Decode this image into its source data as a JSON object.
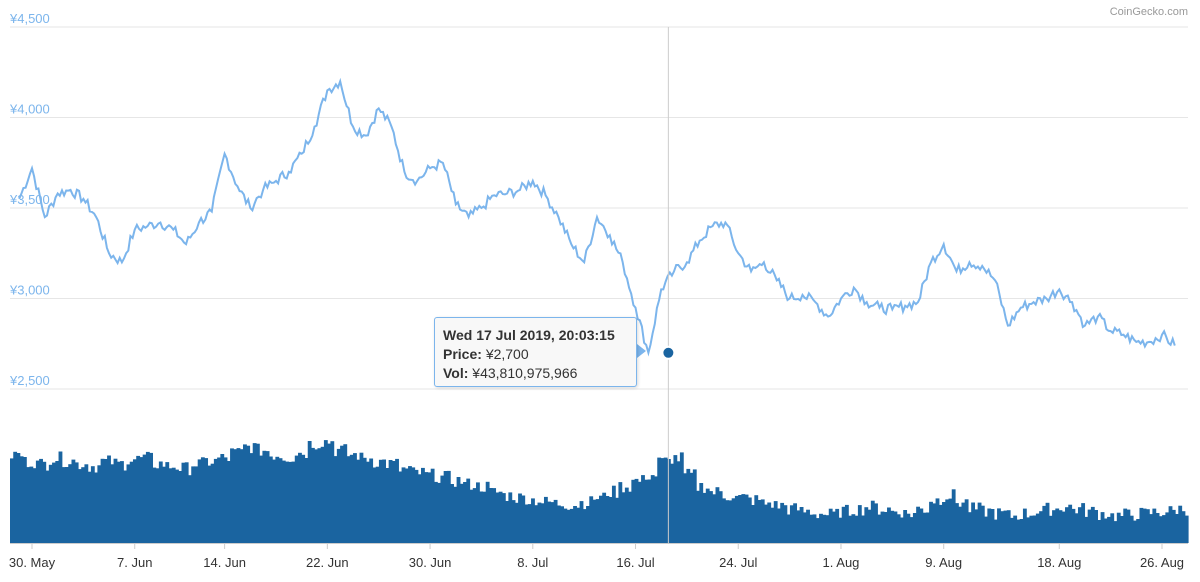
{
  "credit": "CoinGecko.com",
  "colors": {
    "price_line": "#7cb5ec",
    "volume_fill": "#1a64a0",
    "y_label": "#7cb5ec",
    "grid": "#e6e6e6",
    "x_label": "#333333"
  },
  "tooltip": {
    "title": "Wed 17 Jul 2019, 20:03:15",
    "price_label": "Price:",
    "price_value": "¥2,700",
    "vol_label": "Vol:",
    "vol_value": "¥43,810,975,966"
  },
  "chart_data": [
    {
      "type": "line",
      "name": "price",
      "x_unit": "date",
      "x": [
        "2019-05-29",
        "2019-05-30",
        "2019-05-31",
        "2019-06-01",
        "2019-06-02",
        "2019-06-03",
        "2019-06-04",
        "2019-06-05",
        "2019-06-06",
        "2019-06-07",
        "2019-06-08",
        "2019-06-09",
        "2019-06-10",
        "2019-06-11",
        "2019-06-12",
        "2019-06-13",
        "2019-06-14",
        "2019-06-15",
        "2019-06-16",
        "2019-06-17",
        "2019-06-18",
        "2019-06-19",
        "2019-06-20",
        "2019-06-21",
        "2019-06-22",
        "2019-06-23",
        "2019-06-24",
        "2019-06-25",
        "2019-06-26",
        "2019-06-27",
        "2019-06-28",
        "2019-06-29",
        "2019-06-30",
        "2019-07-01",
        "2019-07-02",
        "2019-07-03",
        "2019-07-04",
        "2019-07-05",
        "2019-07-06",
        "2019-07-07",
        "2019-07-08",
        "2019-07-09",
        "2019-07-10",
        "2019-07-11",
        "2019-07-12",
        "2019-07-13",
        "2019-07-14",
        "2019-07-15",
        "2019-07-16",
        "2019-07-17",
        "2019-07-18",
        "2019-07-19",
        "2019-07-20",
        "2019-07-21",
        "2019-07-22",
        "2019-07-23",
        "2019-07-24",
        "2019-07-25",
        "2019-07-26",
        "2019-07-27",
        "2019-07-28",
        "2019-07-29",
        "2019-07-30",
        "2019-07-31",
        "2019-08-01",
        "2019-08-02",
        "2019-08-03",
        "2019-08-04",
        "2019-08-05",
        "2019-08-06",
        "2019-08-07",
        "2019-08-08",
        "2019-08-09",
        "2019-08-10",
        "2019-08-11",
        "2019-08-12",
        "2019-08-13",
        "2019-08-14",
        "2019-08-15",
        "2019-08-16",
        "2019-08-17",
        "2019-08-18",
        "2019-08-19",
        "2019-08-20",
        "2019-08-21",
        "2019-08-22",
        "2019-08-23",
        "2019-08-24",
        "2019-08-25",
        "2019-08-26",
        "2019-08-27"
      ],
      "y": [
        3550,
        3720,
        3450,
        3580,
        3600,
        3550,
        3450,
        3250,
        3200,
        3380,
        3400,
        3420,
        3380,
        3300,
        3420,
        3480,
        3800,
        3620,
        3500,
        3600,
        3650,
        3700,
        3800,
        3950,
        4150,
        4200,
        3950,
        3900,
        4050,
        3950,
        3700,
        3650,
        3720,
        3750,
        3520,
        3450,
        3500,
        3570,
        3580,
        3600,
        3650,
        3570,
        3450,
        3300,
        3200,
        3450,
        3350,
        3200,
        2950,
        2700,
        3050,
        3150,
        3200,
        3320,
        3400,
        3420,
        3250,
        3150,
        3200,
        3100,
        3000,
        3020,
        2980,
        2900,
        3000,
        3060,
        2980,
        2950,
        2940,
        2960,
        2980,
        3200,
        3300,
        3150,
        3200,
        3180,
        3100,
        2850,
        2950,
        2980,
        3000,
        3050,
        2980,
        2850,
        2900,
        2820,
        2800,
        2760,
        2760,
        2800,
        2740
      ],
      "ylim": [
        2500,
        4500
      ],
      "y_ticks": [
        "¥2,500",
        "¥3,000",
        "¥3,500",
        "¥4,000",
        "¥4,500"
      ],
      "y_tick_values": [
        2500,
        3000,
        3500,
        4000,
        4500
      ],
      "x_tick_labels": [
        "30. May",
        "7. Jun",
        "14. Jun",
        "22. Jun",
        "30. Jun",
        "8. Jul",
        "16. Jul",
        "24. Jul",
        "1. Aug",
        "9. Aug",
        "18. Aug",
        "26. Aug"
      ],
      "x_tick_dates": [
        "2019-05-30",
        "2019-06-07",
        "2019-06-14",
        "2019-06-22",
        "2019-06-30",
        "2019-07-08",
        "2019-07-16",
        "2019-07-24",
        "2019-08-01",
        "2019-08-09",
        "2019-08-18",
        "2019-08-26"
      ],
      "highlight": {
        "x": "2019-07-17",
        "y": 2700
      },
      "grid": true
    },
    {
      "type": "bar",
      "name": "volume",
      "x_unit": "date",
      "relative_values": [
        0.78,
        0.72,
        0.7,
        0.75,
        0.73,
        0.7,
        0.68,
        0.72,
        0.7,
        0.74,
        0.75,
        0.7,
        0.68,
        0.66,
        0.7,
        0.72,
        0.75,
        0.8,
        0.85,
        0.82,
        0.78,
        0.76,
        0.8,
        0.88,
        0.9,
        0.82,
        0.78,
        0.75,
        0.72,
        0.7,
        0.65,
        0.62,
        0.6,
        0.58,
        0.55,
        0.52,
        0.5,
        0.45,
        0.42,
        0.4,
        0.38,
        0.36,
        0.35,
        0.34,
        0.36,
        0.4,
        0.45,
        0.5,
        0.55,
        0.6,
        0.72,
        0.75,
        0.6,
        0.5,
        0.45,
        0.42,
        0.4,
        0.38,
        0.35,
        0.33,
        0.3,
        0.28,
        0.26,
        0.25,
        0.28,
        0.3,
        0.32,
        0.3,
        0.28,
        0.26,
        0.3,
        0.38,
        0.42,
        0.36,
        0.3,
        0.28,
        0.26,
        0.24,
        0.26,
        0.28,
        0.3,
        0.32,
        0.3,
        0.28,
        0.26,
        0.24,
        0.25,
        0.26,
        0.27,
        0.28,
        0.3
      ]
    }
  ]
}
